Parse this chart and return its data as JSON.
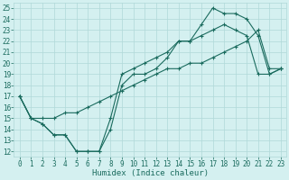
{
  "xlabel": "Humidex (Indice chaleur)",
  "ylabel": "",
  "xlim": [
    -0.5,
    23.5
  ],
  "ylim": [
    11.5,
    25.5
  ],
  "xticks": [
    0,
    1,
    2,
    3,
    4,
    5,
    6,
    7,
    8,
    9,
    10,
    11,
    12,
    13,
    14,
    15,
    16,
    17,
    18,
    19,
    20,
    21,
    22,
    23
  ],
  "yticks": [
    12,
    13,
    14,
    15,
    16,
    17,
    18,
    19,
    20,
    21,
    22,
    23,
    24,
    25
  ],
  "background_color": "#d4f0f0",
  "grid_color": "#b0d8d8",
  "line_color": "#1a6b5e",
  "line1_x": [
    0,
    1,
    2,
    3,
    4,
    5,
    6,
    7,
    8,
    9,
    10,
    11,
    12,
    13,
    14,
    15,
    16,
    17,
    18,
    19,
    20,
    21,
    22,
    23
  ],
  "line1_y": [
    17,
    15,
    14.5,
    13.5,
    13.5,
    12,
    12,
    12,
    14,
    18,
    19,
    19,
    19.5,
    20.5,
    22,
    22,
    22.5,
    23,
    23.5,
    23,
    22.5,
    19,
    19,
    19.5
  ],
  "line2_x": [
    0,
    1,
    2,
    3,
    4,
    5,
    6,
    7,
    8,
    9,
    10,
    11,
    12,
    13,
    14,
    15,
    16,
    17,
    18,
    19,
    20,
    21,
    22,
    23
  ],
  "line2_y": [
    17,
    15,
    14.5,
    13.5,
    13.5,
    12,
    12,
    12,
    15,
    19,
    19.5,
    20,
    20.5,
    21,
    22,
    22,
    23.5,
    25,
    24.5,
    24.5,
    24,
    22.5,
    19,
    19.5
  ],
  "line3_x": [
    0,
    1,
    2,
    3,
    4,
    5,
    6,
    7,
    8,
    9,
    10,
    11,
    12,
    13,
    14,
    15,
    16,
    17,
    18,
    19,
    20,
    21,
    22,
    23
  ],
  "line3_y": [
    17,
    15,
    15,
    15,
    15.5,
    15.5,
    16,
    16.5,
    17,
    17.5,
    18,
    18.5,
    19,
    19.5,
    19.5,
    20,
    20,
    20.5,
    21,
    21.5,
    22,
    23,
    19.5,
    19.5
  ],
  "tick_fontsize": 5.5,
  "xlabel_fontsize": 6.5
}
